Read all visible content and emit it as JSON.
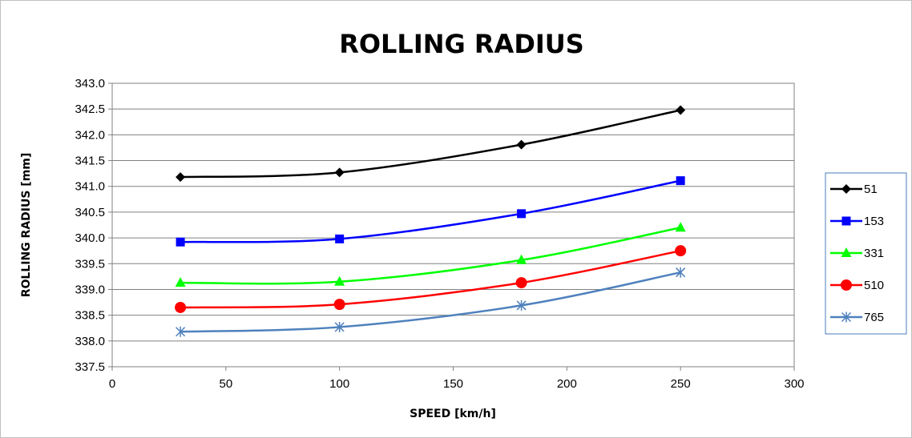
{
  "chart_data": {
    "type": "line",
    "title": "ROLLING RADIUS",
    "xlabel": "SPEED [km/h]",
    "ylabel": "ROLLING RADIUS [mm]",
    "xlim": [
      0,
      300
    ],
    "ylim": [
      337.5,
      343.0
    ],
    "x_ticks": [
      "0",
      "50",
      "100",
      "150",
      "200",
      "250",
      "300"
    ],
    "y_ticks": [
      "337.5",
      "338.0",
      "338.5",
      "339.0",
      "339.5",
      "340.0",
      "340.5",
      "341.0",
      "341.5",
      "342.0",
      "342.5",
      "343.0"
    ],
    "grid": "horizontal",
    "legend_position": "right",
    "x": [
      30,
      100,
      180,
      250
    ],
    "series": [
      {
        "name": "51",
        "values": [
          341.18,
          341.27,
          341.81,
          342.48
        ],
        "color": "#000000",
        "marker": "diamond"
      },
      {
        "name": "153",
        "values": [
          339.92,
          339.98,
          340.47,
          341.11
        ],
        "color": "#0000FF",
        "marker": "square"
      },
      {
        "name": "331",
        "values": [
          339.13,
          339.15,
          339.57,
          340.2
        ],
        "color": "#00FF00",
        "marker": "triangle"
      },
      {
        "name": "510",
        "values": [
          338.65,
          338.71,
          339.13,
          339.75
        ],
        "color": "#FF0000",
        "marker": "circle"
      },
      {
        "name": "765",
        "values": [
          338.18,
          338.27,
          338.69,
          339.33
        ],
        "color": "#4F81BD",
        "marker": "star"
      }
    ]
  }
}
